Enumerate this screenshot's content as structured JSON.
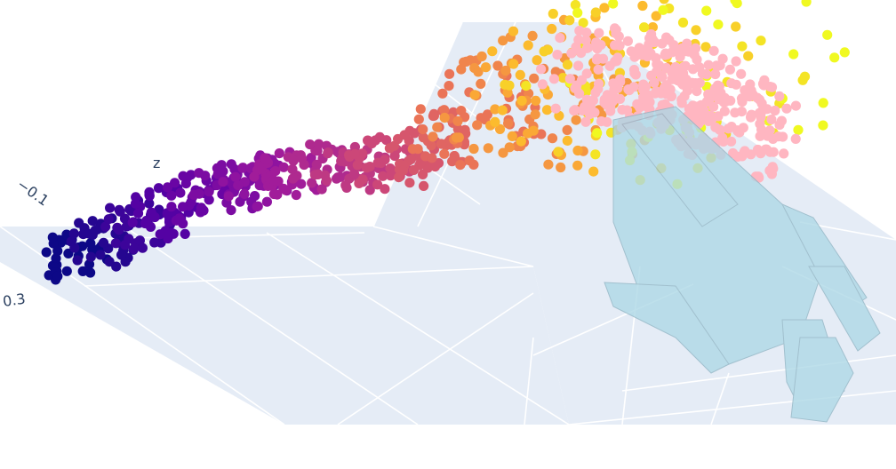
{
  "chart_data": {
    "type": "scatter",
    "mode": "3d",
    "axes": {
      "z": {
        "label": "z",
        "tick_labels": [
          "−0.1",
          "0.3"
        ]
      }
    },
    "colorscale": [
      "#0d0887",
      "#5c01a6",
      "#9c179e",
      "#cc4778",
      "#ed7953",
      "#fdb42f",
      "#f0f921"
    ],
    "series": [
      {
        "marker_color": "colorscale",
        "points": [
          [
            0.0,
            0.0,
            -0.1
          ],
          [
            0.05,
            0.02,
            -0.06
          ],
          [
            0.1,
            0.03,
            -0.02
          ],
          [
            0.15,
            0.05,
            0.01
          ],
          [
            0.2,
            0.07,
            0.04
          ],
          [
            0.25,
            0.09,
            0.06
          ],
          [
            0.3,
            0.1,
            0.08
          ],
          [
            0.35,
            0.12,
            0.09
          ],
          [
            0.4,
            0.14,
            0.1
          ],
          [
            0.45,
            0.15,
            0.1
          ],
          [
            0.5,
            0.17,
            0.11
          ],
          [
            0.55,
            0.19,
            0.12
          ],
          [
            0.6,
            0.21,
            0.16
          ],
          [
            0.65,
            0.23,
            0.2
          ],
          [
            0.7,
            0.25,
            0.23
          ],
          [
            0.75,
            0.27,
            0.25
          ],
          [
            0.8,
            0.29,
            0.26
          ],
          [
            0.85,
            0.31,
            0.27
          ],
          [
            0.9,
            0.33,
            0.28
          ],
          [
            0.95,
            0.35,
            0.29
          ],
          [
            1.0,
            0.37,
            0.3
          ]
        ]
      },
      {
        "marker_color": "#ffb6c1",
        "points": [
          [
            0.85,
            0.3,
            0.3
          ],
          [
            0.9,
            0.36,
            0.28
          ],
          [
            0.95,
            0.4,
            0.24
          ],
          [
            1.0,
            0.46,
            0.2
          ],
          [
            1.05,
            0.52,
            0.14
          ],
          [
            1.08,
            0.56,
            0.08
          ]
        ]
      }
    ],
    "mesh": {
      "color": "#add8e6",
      "opacity": 0.65
    },
    "scene": {
      "background": "#e5ecf6",
      "grid": true,
      "grid_color": "#ffffff"
    }
  }
}
